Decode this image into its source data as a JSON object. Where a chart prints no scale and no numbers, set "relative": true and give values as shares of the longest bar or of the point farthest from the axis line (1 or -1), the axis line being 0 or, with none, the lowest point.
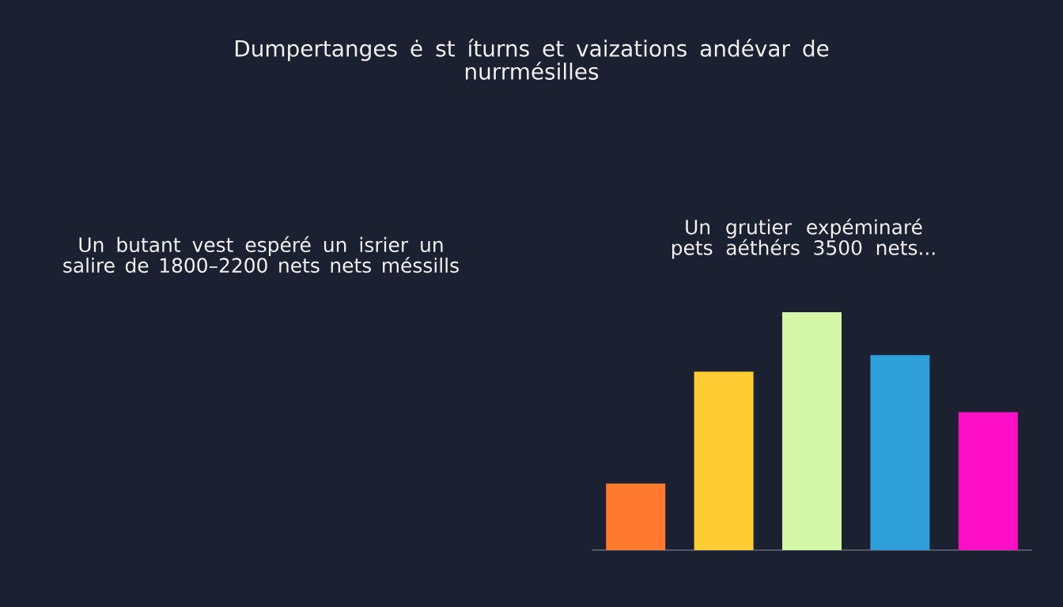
{
  "chart_data": [
    {
      "type": "other",
      "title": "Dumpertanges ė st íturns et vaizations andévar de nurrmésilles",
      "annotations": [
        "Un butant vest espéré un isrier un salire de 1800–2200 nets nets méssills"
      ]
    },
    {
      "type": "bar",
      "title": "Un grutier expéminaré pets aéthérs 3500 nets...",
      "relative": true,
      "categories": [
        null,
        null,
        null,
        null,
        null
      ],
      "values": [
        0.28,
        0.75,
        1.0,
        0.82,
        0.58
      ],
      "colors": [
        "#ff7a2e",
        "#ffcc33",
        "#d4f7a8",
        "#2e9fd8",
        "#ff10c8"
      ]
    }
  ]
}
